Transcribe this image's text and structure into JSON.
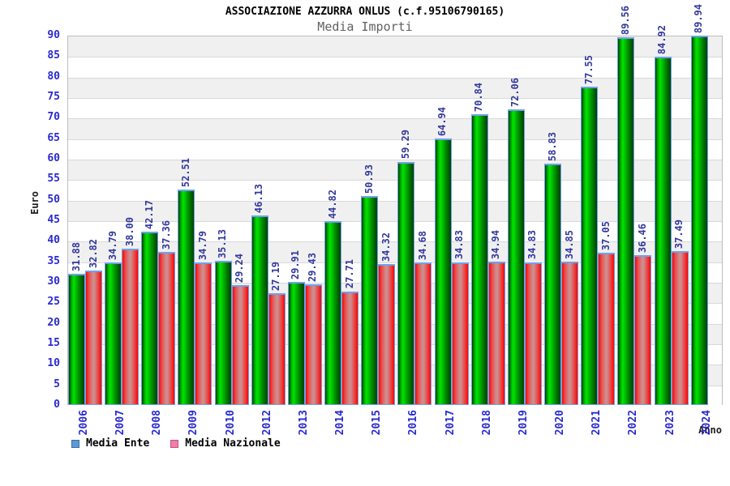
{
  "title": "ASSOCIAZIONE AZZURRA ONLUS (c.f.95106790165)",
  "subtitle": "Media Importi",
  "axis": {
    "y_label": "Euro",
    "x_label": "Anno"
  },
  "legend": {
    "items": [
      {
        "label": "Media Ente",
        "swatch_color": "#5b9bd5"
      },
      {
        "label": "Media Nazionale",
        "swatch_color": "#ef7fa7"
      }
    ]
  },
  "chart_data": {
    "type": "bar",
    "title": "ASSOCIAZIONE AZZURRA ONLUS (c.f.95106790165)",
    "subtitle": "Media Importi",
    "xlabel": "Anno",
    "ylabel": "Euro",
    "ylim": [
      0,
      90
    ],
    "ytick_step": 5,
    "grid": "horizontal gridlines with alternating gray/white bands",
    "legend_position": "bottom-left",
    "value_labels": "rotated 90deg above each bar",
    "tick_label_color": "#2a2ad0",
    "value_label_color": "#33399b",
    "bar_colors": {
      "media_ente": "#00c600",
      "media_nazionale": "#fb0400"
    },
    "categories": [
      "2006",
      "2007",
      "2008",
      "2009",
      "2010",
      "2012",
      "2013",
      "2014",
      "2015",
      "2016",
      "2017",
      "2018",
      "2019",
      "2020",
      "2021",
      "2022",
      "2023",
      "2024"
    ],
    "series": [
      {
        "name": "Media Ente",
        "values": [
          31.88,
          34.79,
          42.17,
          52.51,
          35.13,
          46.13,
          29.91,
          44.82,
          50.93,
          59.29,
          64.94,
          70.84,
          72.06,
          58.83,
          77.55,
          89.56,
          84.92,
          89.94
        ]
      },
      {
        "name": "Media Nazionale",
        "values": [
          32.82,
          38.0,
          37.36,
          34.79,
          29.24,
          27.19,
          29.43,
          27.71,
          34.32,
          34.68,
          34.83,
          34.94,
          34.83,
          34.85,
          37.05,
          36.46,
          37.49,
          null
        ]
      }
    ]
  }
}
